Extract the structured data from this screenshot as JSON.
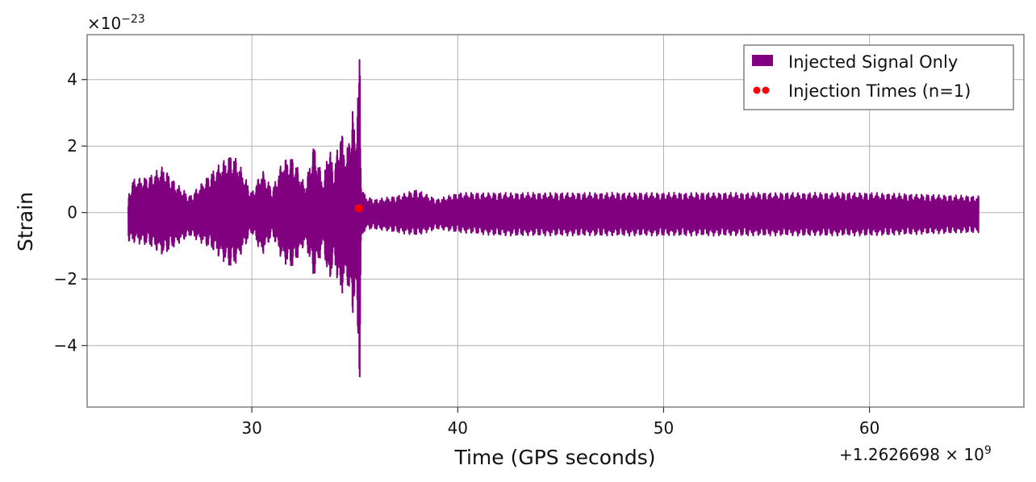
{
  "chart_data": {
    "type": "line",
    "title": "",
    "xlabel": "Time (GPS seconds)",
    "ylabel": "Strain",
    "x_offset_label": "+1.2626698 × 10",
    "x_offset_exp": "9",
    "y_scale_label": "×10",
    "y_scale_exp": "−23",
    "xlim": [
      22,
      67.5
    ],
    "ylim": [
      -5.85,
      5.35
    ],
    "xticks": [
      30,
      40,
      50,
      60
    ],
    "xtick_labels": [
      "30",
      "40",
      "50",
      "60"
    ],
    "yticks": [
      4,
      2,
      0,
      -2,
      -4
    ],
    "ytick_labels": [
      "4",
      "2",
      "0",
      "−2",
      "−4"
    ],
    "grid": true,
    "legend_position": "top-right",
    "colors": {
      "signal": "#800080",
      "injection": "#ff0000",
      "grid": "#b0b0b0",
      "frame": "#808080"
    },
    "series": [
      {
        "name": "Injected Signal Only",
        "kind": "strain-envelope",
        "x_range": [
          24.0,
          65.3
        ],
        "envelope": {
          "x": [
            24.0,
            24.2,
            25.0,
            25.7,
            26.3,
            27.0,
            28.0,
            29.0,
            29.3,
            30.0,
            30.5,
            31.0,
            31.5,
            32.0,
            32.6,
            33.0,
            33.5,
            33.7,
            34.0,
            34.3,
            34.6,
            34.9,
            35.0,
            35.2,
            35.25,
            35.3,
            35.5,
            36.0,
            37.0,
            38.0,
            39.0,
            40.0,
            42.0,
            45.0,
            50.0,
            55.0,
            60.0,
            65.3
          ],
          "upper": [
            0.5,
            1.0,
            1.1,
            1.4,
            0.9,
            0.5,
            1.2,
            1.8,
            1.6,
            0.6,
            1.3,
            0.7,
            1.6,
            1.7,
            0.8,
            2.1,
            0.9,
            2.2,
            1.3,
            2.6,
            1.8,
            3.2,
            2.4,
            4.3,
            4.9,
            1.0,
            0.5,
            0.4,
            0.5,
            0.7,
            0.4,
            0.6,
            0.6,
            0.6,
            0.6,
            0.6,
            0.6,
            0.5
          ],
          "lower": [
            -0.9,
            -0.9,
            -1.0,
            -1.3,
            -1.0,
            -0.7,
            -1.1,
            -1.7,
            -1.5,
            -0.6,
            -1.3,
            -0.7,
            -1.5,
            -1.7,
            -0.9,
            -2.0,
            -1.0,
            -2.3,
            -1.5,
            -2.6,
            -2.0,
            -3.2,
            -2.5,
            -4.5,
            -5.4,
            -1.0,
            -0.5,
            -0.5,
            -0.6,
            -0.7,
            -0.5,
            -0.6,
            -0.7,
            -0.7,
            -0.7,
            -0.7,
            -0.7,
            -0.6
          ]
        }
      },
      {
        "name": "Injection Times (n=1)",
        "kind": "scatter",
        "points": [
          {
            "x": 35.2,
            "y": 0.13
          }
        ]
      }
    ]
  }
}
